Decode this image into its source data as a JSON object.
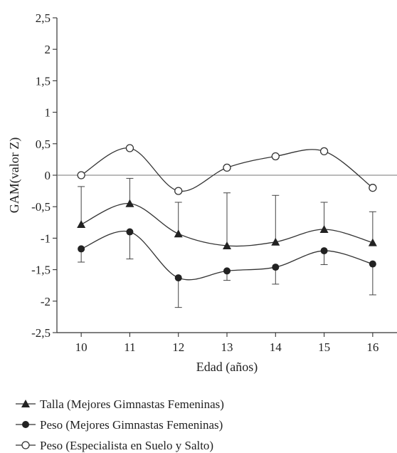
{
  "chart_data": {
    "type": "line",
    "xlabel": "Edad (años)",
    "ylabel": "GAM(valor Z)",
    "ylim": [
      -2.5,
      2.5
    ],
    "xlim": [
      9.5,
      16.5
    ],
    "x": [
      10,
      11,
      12,
      13,
      14,
      15,
      16
    ],
    "x_ticks": [
      "10",
      "11",
      "12",
      "13",
      "14",
      "15",
      "16"
    ],
    "y_ticks": [
      {
        "value": 2.5,
        "label": "2,5"
      },
      {
        "value": 2,
        "label": "2"
      },
      {
        "value": 1.5,
        "label": "1,5"
      },
      {
        "value": 1,
        "label": "1"
      },
      {
        "value": 0.5,
        "label": "0,5"
      },
      {
        "value": 0,
        "label": "0"
      },
      {
        "value": -0.5,
        "label": "-0,5"
      },
      {
        "value": -1,
        "label": "-1"
      },
      {
        "value": -1.5,
        "label": "-1,5"
      },
      {
        "value": -2,
        "label": "-2"
      },
      {
        "value": -2.5,
        "label": "-2,5"
      }
    ],
    "reference_line": 0,
    "grid": false,
    "legend_position": "bottom-left",
    "series": [
      {
        "name": "Talla (Mejores Gimnastas Femeninas)",
        "marker": "triangle",
        "values": [
          -0.78,
          -0.45,
          -0.93,
          -1.12,
          -1.06,
          -0.86,
          -1.07
        ],
        "error_upper": [
          -0.18,
          -0.05,
          -0.43,
          -0.28,
          -0.32,
          -0.43,
          -0.58
        ],
        "error_lower": [
          -0.78,
          -0.45,
          -0.93,
          -1.12,
          -1.06,
          -0.86,
          -1.07
        ]
      },
      {
        "name": "Peso (Mejores Gimnastas Femeninas)",
        "marker": "filled-circle",
        "values": [
          -1.17,
          -0.9,
          -1.63,
          -1.52,
          -1.46,
          -1.2,
          -1.41
        ],
        "error_upper": [
          -1.17,
          -0.9,
          -1.63,
          -1.52,
          -1.46,
          -1.2,
          -1.41
        ],
        "error_lower": [
          -1.38,
          -1.33,
          -2.1,
          -1.67,
          -1.73,
          -1.42,
          -1.9
        ]
      },
      {
        "name": "Peso (Especialista en Suelo y Salto)",
        "marker": "open-circle",
        "values": [
          0.0,
          0.43,
          -0.25,
          0.12,
          0.3,
          0.38,
          -0.2
        ]
      }
    ]
  }
}
